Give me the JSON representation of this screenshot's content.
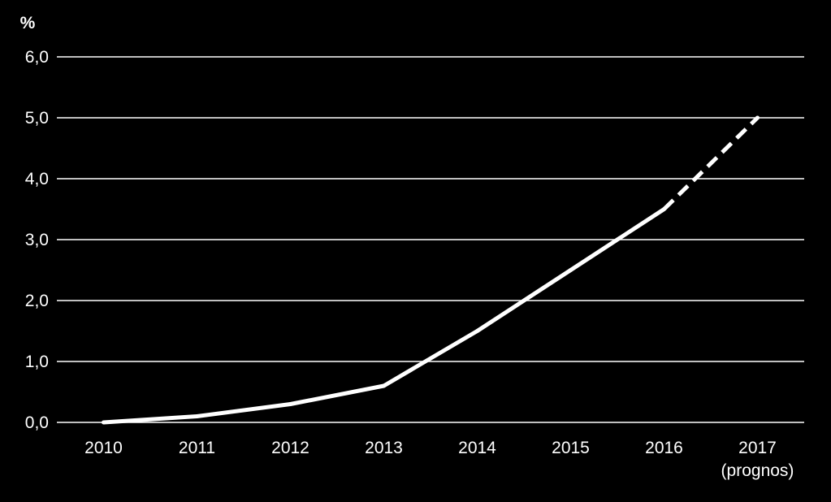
{
  "chart_data": {
    "type": "line",
    "title": "",
    "xlabel": "",
    "ylabel": "%",
    "ylim": [
      0,
      6
    ],
    "y_ticks": [
      "0,0",
      "1,0",
      "2,0",
      "3,0",
      "4,0",
      "5,0",
      "6,0"
    ],
    "y_tick_values": [
      0,
      1,
      2,
      3,
      4,
      5,
      6
    ],
    "categories": [
      "2010",
      "2011",
      "2012",
      "2013",
      "2014",
      "2015",
      "2016",
      "2017"
    ],
    "category_sublabels": [
      "",
      "",
      "",
      "",
      "",
      "",
      "",
      "(prognos)"
    ],
    "grid": true,
    "legend": "none",
    "series": [
      {
        "values": [
          0.0,
          0.1,
          0.3,
          0.6,
          1.5,
          2.5,
          3.5,
          5.0
        ],
        "forecast_from_index": 6
      }
    ],
    "colors": {
      "background": "#000000",
      "line": "#ffffff",
      "grid": "#ffffff",
      "text": "#ffffff"
    }
  }
}
